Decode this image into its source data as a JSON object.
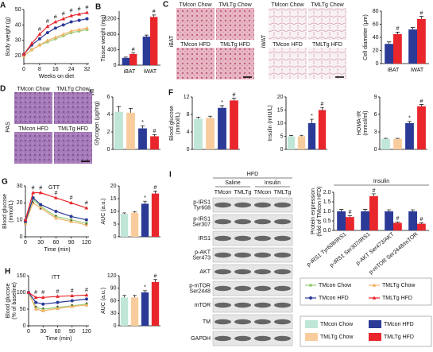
{
  "chart_data": [
    {
      "type": "line",
      "panel": "A",
      "ylabel": "Body weight (g)",
      "xlabel": "Weeks on diet",
      "x": [
        0,
        4,
        8,
        12,
        16,
        20,
        24,
        28,
        32
      ],
      "xlim": [
        0,
        33
      ],
      "xticks": [
        0,
        8,
        16,
        24,
        32
      ],
      "ylim": [
        15,
        50
      ],
      "yticks": [
        20,
        30,
        40,
        50
      ],
      "series": [
        {
          "name": "TMcon Chow",
          "color": "#9ccc7a",
          "marker": "circle",
          "values": [
            20,
            24,
            27,
            29,
            31,
            33,
            35,
            36,
            37
          ]
        },
        {
          "name": "TMLTg Chow",
          "color": "#f2b366",
          "marker": "triangle",
          "values": [
            20,
            24,
            27,
            30,
            32,
            34,
            36,
            37,
            38
          ]
        },
        {
          "name": "TMcon HFD",
          "color": "#2b3a97",
          "marker": "circle",
          "values": [
            21,
            27,
            31,
            35,
            38,
            40,
            42,
            43,
            44
          ]
        },
        {
          "name": "TMLTg HFD",
          "color": "#e8262c",
          "marker": "triangle",
          "values": [
            21,
            28,
            34,
            39,
            42,
            44,
            46,
            47,
            48
          ],
          "significance": [
            null,
            null,
            "#",
            "#",
            "#",
            "#",
            "#",
            "#",
            "#"
          ]
        }
      ]
    },
    {
      "type": "bar",
      "panel": "B",
      "ylabel": "Tissue weight (mg)",
      "categories": [
        "iBAT",
        "iWAT"
      ],
      "ylim": [
        0,
        1400
      ],
      "yticks": [
        0,
        400,
        800,
        1200
      ],
      "series": [
        {
          "color": "#2b3a97",
          "values": [
            190,
            740
          ],
          "errors": [
            20,
            40
          ]
        },
        {
          "color": "#e8262c",
          "values": [
            290,
            1250
          ],
          "errors": [
            25,
            50
          ],
          "significance": [
            "#",
            "#"
          ]
        }
      ]
    },
    {
      "type": "bar",
      "ylabel": "Cell diameter (μm)",
      "categories": [
        "iBAT",
        "iWAT"
      ],
      "ylim": [
        0,
        80
      ],
      "yticks": [
        0,
        20,
        40,
        60,
        80
      ],
      "series": [
        {
          "color": "#2b3a97",
          "values": [
            30,
            52
          ],
          "errors": [
            3,
            3
          ]
        },
        {
          "color": "#e8262c",
          "values": [
            45,
            68
          ],
          "errors": [
            3,
            4
          ],
          "significance": [
            "#",
            "#"
          ]
        }
      ]
    },
    {
      "type": "bar",
      "panel": "E",
      "ylabel": "Glycogen (μg/mg)",
      "categories": [
        null,
        null,
        null,
        null
      ],
      "ylim": [
        0,
        6
      ],
      "yticks": [
        0,
        2,
        4,
        6
      ],
      "series": [
        {
          "colors": [
            "#bfe6d6",
            "#f9cc9d",
            "#2b3a97",
            "#e8262c"
          ],
          "values": [
            4.3,
            4.2,
            2.4,
            1.5
          ],
          "errors": [
            0.6,
            0.5,
            0.3,
            0.2
          ],
          "significance": [
            null,
            null,
            "*",
            "#"
          ]
        }
      ]
    },
    {
      "type": "bar",
      "panel": "F",
      "ylabel": [
        "Blood glucose",
        "(mmol/L)"
      ],
      "categories": [
        null,
        null,
        null,
        null
      ],
      "ylim": [
        0,
        12
      ],
      "yticks": [
        0,
        4,
        8,
        12
      ],
      "series": [
        {
          "colors": [
            "#bfe6d6",
            "#f9cc9d",
            "#2b3a97",
            "#e8262c"
          ],
          "values": [
            7,
            7.2,
            9.5,
            11.2
          ],
          "errors": [
            0.4,
            0.4,
            0.5,
            0.5
          ],
          "significance": [
            null,
            null,
            "*",
            "#"
          ]
        }
      ]
    },
    {
      "type": "bar",
      "ylabel": "Insulin (mIU/L)",
      "categories": [
        null,
        null,
        null,
        null
      ],
      "ylim": [
        0,
        20
      ],
      "yticks": [
        0,
        5,
        10,
        15,
        20
      ],
      "series": [
        {
          "colors": [
            "#bfe6d6",
            "#f9cc9d",
            "#2b3a97",
            "#e8262c"
          ],
          "values": [
            5,
            5,
            10,
            15
          ],
          "errors": [
            0.3,
            0.4,
            1.5,
            1
          ],
          "significance": [
            null,
            null,
            "*",
            "#"
          ]
        }
      ]
    },
    {
      "type": "bar",
      "ylabel": [
        "HOMA-IR",
        "(mmol/ml)"
      ],
      "categories": [
        null,
        null,
        null,
        null
      ],
      "ylim": [
        0,
        9
      ],
      "yticks": [
        0,
        3,
        6,
        9
      ],
      "series": [
        {
          "colors": [
            "#bfe6d6",
            "#f9cc9d",
            "#2b3a97",
            "#e8262c"
          ],
          "values": [
            1.8,
            1.8,
            4.5,
            7.4
          ],
          "errors": [
            0.1,
            0.1,
            0.3,
            0.3
          ],
          "significance": [
            null,
            null,
            "*",
            "#"
          ]
        }
      ]
    },
    {
      "type": "line",
      "panel": "G",
      "annotation": "GTT",
      "ylabel": [
        "Blood glucose",
        "(mmol/L)"
      ],
      "xlabel": "Time (min)",
      "x": [
        0,
        15,
        30,
        60,
        90,
        120
      ],
      "xlim": [
        0,
        125
      ],
      "xticks": [
        0,
        30,
        60,
        90,
        120
      ],
      "ylim": [
        0,
        30
      ],
      "yticks": [
        0,
        10,
        20,
        30
      ],
      "series": [
        {
          "color": "#9ccc7a",
          "marker": "circle",
          "values": [
            8,
            22,
            18,
            12,
            10,
            8
          ]
        },
        {
          "color": "#f2b366",
          "marker": "triangle",
          "values": [
            8,
            20,
            17,
            11,
            9,
            7
          ]
        },
        {
          "color": "#2b3a97",
          "marker": "circle",
          "values": [
            9,
            23,
            19,
            15,
            12,
            10
          ],
          "significance": [
            null,
            "*",
            "*",
            "*",
            "*",
            "*"
          ]
        },
        {
          "color": "#e8262c",
          "marker": "triangle",
          "values": [
            10,
            26,
            26,
            23,
            20,
            17
          ],
          "significance": [
            null,
            "#",
            "#",
            "#",
            "#",
            "#"
          ]
        }
      ]
    },
    {
      "type": "bar",
      "ylabel": "AUC (a.u.)",
      "categories": [
        null,
        null,
        null,
        null
      ],
      "ylim": [
        0,
        20
      ],
      "yticks": [
        0,
        5,
        10,
        15,
        20
      ],
      "series": [
        {
          "colors": [
            "#bfe6d6",
            "#f9cc9d",
            "#2b3a97",
            "#e8262c"
          ],
          "values": [
            9,
            9.5,
            13,
            17
          ],
          "errors": [
            0.4,
            0.4,
            1,
            1
          ],
          "significance": [
            null,
            null,
            "*",
            "#"
          ]
        }
      ]
    },
    {
      "type": "line",
      "panel": "H",
      "annotation": "ITT",
      "ylabel": [
        "Blood glucose",
        "(% of baseline)"
      ],
      "xlabel": "Time (min)",
      "x": [
        0,
        15,
        30,
        60,
        90,
        120
      ],
      "xlim": [
        0,
        125
      ],
      "xticks": [
        0,
        30,
        60,
        90,
        120
      ],
      "ylim": [
        0,
        150
      ],
      "yticks": [
        0,
        50,
        100,
        150
      ],
      "series": [
        {
          "color": "#9ccc7a",
          "marker": "circle",
          "values": [
            100,
            55,
            50,
            55,
            60,
            65
          ]
        },
        {
          "color": "#f2b366",
          "marker": "triangle",
          "values": [
            100,
            50,
            45,
            52,
            58,
            62
          ]
        },
        {
          "color": "#2b3a97",
          "marker": "circle",
          "values": [
            100,
            70,
            65,
            70,
            75,
            80
          ],
          "significance": [
            null,
            "*",
            "*",
            "*",
            "*",
            "*"
          ]
        },
        {
          "color": "#e8262c",
          "marker": "triangle",
          "values": [
            100,
            85,
            85,
            88,
            90,
            92
          ],
          "significance": [
            null,
            "#",
            "#",
            "#",
            "#",
            "#"
          ]
        }
      ]
    },
    {
      "type": "bar",
      "ylabel": "AUC (a.u.)",
      "categories": [
        null,
        null,
        null,
        null
      ],
      "ylim": [
        0,
        120
      ],
      "yticks": [
        0,
        30,
        60,
        90,
        120
      ],
      "series": [
        {
          "colors": [
            "#bfe6d6",
            "#f9cc9d",
            "#2b3a97",
            "#e8262c"
          ],
          "values": [
            68,
            68,
            80,
            105
          ],
          "errors": [
            5,
            5,
            4,
            6
          ],
          "significance": [
            null,
            null,
            "*",
            "#"
          ]
        }
      ]
    },
    {
      "type": "bar",
      "title": "Insulin",
      "ylabel": [
        "Protein expression",
        "(fold of TMcon HFD)"
      ],
      "categories": [
        "p-IRS1 Tyr608/IRS1",
        "p-IRS1 Ser307/IRS1",
        "p-AKT Ser473/AKT",
        "p-mTOR Ser2448/mTOR"
      ],
      "ylim": [
        0,
        2
      ],
      "yticks": [
        {
          "value": 0,
          "label": "0.0"
        },
        0.5,
        {
          "value": 1,
          "label": "1.0"
        },
        1.5,
        {
          "value": 2,
          "label": "2.0"
        }
      ],
      "series": [
        {
          "color": "#2b3a97",
          "values": [
            1,
            1,
            1,
            1
          ],
          "errors": [
            0.1,
            0.1,
            0.08,
            0.08
          ]
        },
        {
          "color": "#e8262c",
          "values": [
            0.7,
            1.8,
            0.4,
            0.35
          ],
          "errors": [
            0.08,
            0.12,
            0.05,
            0.05
          ],
          "significance": [
            "#",
            "#",
            "#",
            "#"
          ]
        }
      ]
    }
  ],
  "figure": {
    "ihc": {
      "panel": "C",
      "groups": [
        {
          "tissue": "iBAT",
          "labels": [
            "TMcon Chow",
            "TMLTg Chow",
            "TMcon HFD",
            "TMLTg HFD"
          ]
        },
        {
          "tissue": "iWAT",
          "labels": [
            "TMcon Chow",
            "TMLTg Chow",
            "TMcon HFD",
            "TMLTg HFD"
          ]
        }
      ]
    },
    "pas": {
      "panel": "D",
      "stain": "PAS",
      "labels": [
        "TMcon Chow",
        "TMLTg Chow",
        "TMcon HFD",
        "TMLTg HFD"
      ]
    },
    "blot": {
      "panel": "I",
      "condition": "HFD",
      "treatments": [
        "Saline",
        "Insulin"
      ],
      "lanes": [
        "TMcon",
        "TMLTg",
        "TMcon",
        "TMLTg"
      ],
      "rows": [
        [
          "p-IRS1",
          "Tyr608"
        ],
        [
          "p-IRS1",
          "Ser307"
        ],
        [
          "IRS1"
        ],
        [
          "p-AKT",
          "Ser473"
        ],
        [
          "AKT"
        ],
        [
          "p-mTOR",
          "Ser2448"
        ],
        [
          "mTOR"
        ],
        [
          "TM"
        ],
        [
          "GAPDH"
        ]
      ]
    },
    "bar_legend": [
      {
        "name": "TMcon Chow",
        "color": "#bfe6d6"
      },
      {
        "name": "TMLTg Chow",
        "color": "#f9cc9d"
      },
      {
        "name": "TMcon HFD",
        "color": "#2b3a97"
      },
      {
        "name": "TMLTg HFD",
        "color": "#e8262c"
      }
    ]
  }
}
